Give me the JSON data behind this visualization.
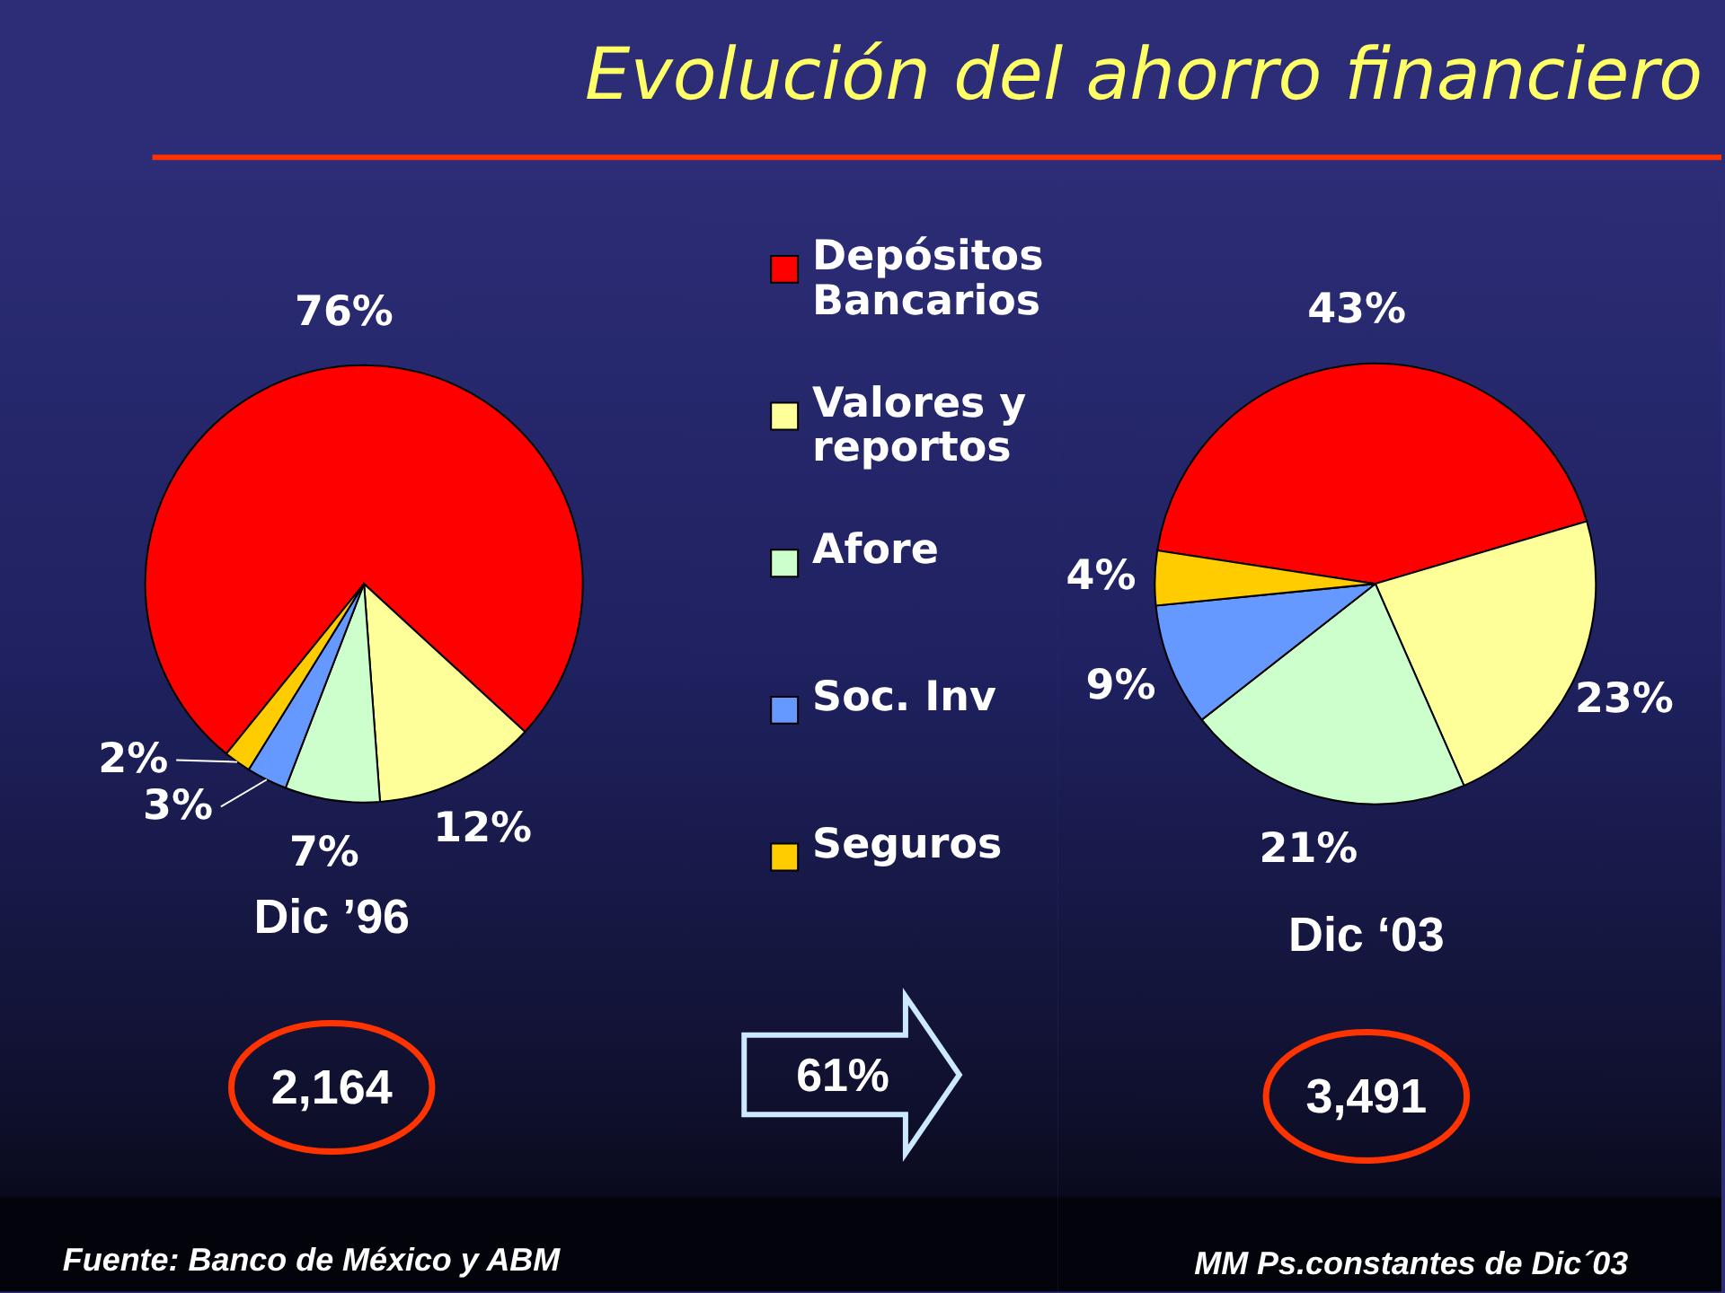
{
  "chart_data": [
    {
      "type": "pie",
      "title": "Evolución del ahorro financiero",
      "subtitle": "Dic ’96",
      "categories": [
        "Depósitos Bancarios",
        "Valores y reportos",
        "Afore",
        "Soc. Inv",
        "Seguros"
      ],
      "values": [
        76,
        12,
        7,
        3,
        2
      ],
      "colors": [
        "#ff0000",
        "#ffff99",
        "#ccffcc",
        "#6699ff",
        "#ffcc00"
      ],
      "value_labels": [
        "76%",
        "12%",
        "7%",
        "3%",
        "2%"
      ],
      "legend": "right",
      "annotations": [
        "2,164",
        "61%",
        "Fuente: Banco de México y ABM"
      ]
    },
    {
      "type": "pie",
      "subtitle": "Dic ‘03",
      "categories": [
        null,
        null,
        null,
        null,
        null
      ],
      "values": [
        43,
        23,
        21,
        9,
        4
      ],
      "colors": [
        "#ff0000",
        "#ffff99",
        "#ccffcc",
        "#6699ff",
        "#ffcc00"
      ],
      "value_labels": [
        "43%",
        "23%",
        "21%",
        "9%",
        "4%"
      ],
      "annotations": [
        "3,491",
        "MM Ps.constantes  de Dic´03"
      ]
    }
  ]
}
